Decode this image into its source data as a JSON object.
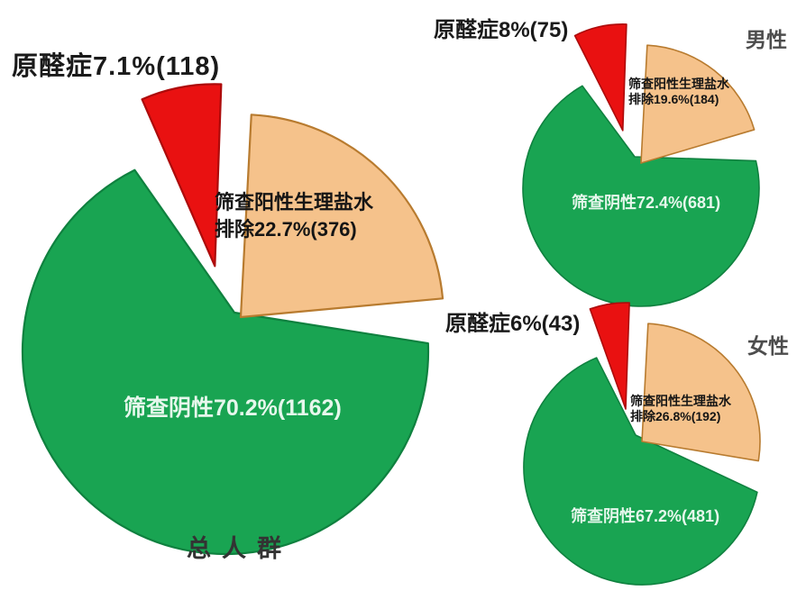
{
  "figure": {
    "background": "#ffffff",
    "colors": {
      "negative_green": "#19A452",
      "negative_green_border": "#0F813F",
      "positive_orange": "#F5C28B",
      "positive_orange_border": "#B87B2F",
      "pa_red": "#E91111",
      "pa_red_border": "#AD0B0B",
      "callout_text": "#1A1A1A",
      "side_label_text": "#4D4D4D",
      "population_label_text": "#333333",
      "green_slice_text": "#E6F7EC",
      "orange_slice_text": "#151515"
    }
  },
  "chart_data": [
    {
      "type": "pie",
      "id": "total",
      "population_label": "总人群",
      "callout_label": "原醛症7.1%(118)",
      "slices": [
        {
          "name": "原醛症",
          "percent": 7.1,
          "count": 118,
          "color": "#E91111"
        },
        {
          "name": "筛查阳性生理盐水排除",
          "percent": 22.7,
          "count": 376,
          "color": "#F5C28B",
          "label_lines": [
            "筛查阳性生理盐水",
            "排除22.7%(376)"
          ]
        },
        {
          "name": "筛查阴性",
          "percent": 70.2,
          "count": 1162,
          "color": "#19A452",
          "label": "筛查阴性70.2%(1162)"
        }
      ]
    },
    {
      "type": "pie",
      "id": "male",
      "population_label": "男性",
      "callout_label": "原醛症8%(75)",
      "slices": [
        {
          "name": "原醛症",
          "percent": 8,
          "count": 75,
          "color": "#E91111"
        },
        {
          "name": "筛查阳性生理盐水排除",
          "percent": 19.6,
          "count": 184,
          "color": "#F5C28B",
          "label_lines": [
            "筛查阳性生理盐水",
            "排除19.6%(184)"
          ]
        },
        {
          "name": "筛查阴性",
          "percent": 72.4,
          "count": 681,
          "color": "#19A452",
          "label": "筛查阴性72.4%(681)"
        }
      ]
    },
    {
      "type": "pie",
      "id": "female",
      "population_label": "女性",
      "callout_label": "原醛症6%(43)",
      "slices": [
        {
          "name": "原醛症",
          "percent": 6,
          "count": 43,
          "color": "#E91111"
        },
        {
          "name": "筛查阳性生理盐水排除",
          "percent": 26.8,
          "count": 192,
          "color": "#F5C28B",
          "label_lines": [
            "筛查阳性生理盐水",
            "排除26.8%(192)"
          ]
        },
        {
          "name": "筛查阴性",
          "percent": 67.2,
          "count": 481,
          "color": "#19A452",
          "label": "筛查阴性67.2%(481)"
        }
      ]
    }
  ]
}
